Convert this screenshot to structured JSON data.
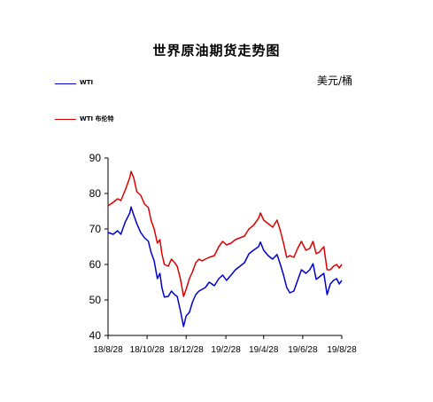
{
  "chart_data": {
    "type": "line",
    "title": "世界原油期货走势图",
    "unit_label": "美元/桶",
    "ylim": [
      40,
      90
    ],
    "y_ticks": [
      90,
      80,
      70,
      60,
      50,
      40
    ],
    "xlim": [
      "2018-08-28",
      "2019-08-28"
    ],
    "x_ticks": [
      {
        "date": "2018-08-28",
        "label": "18/8/28"
      },
      {
        "date": "2018-10-28",
        "label": "18/10/28"
      },
      {
        "date": "2018-12-28",
        "label": "18/12/28"
      },
      {
        "date": "2019-02-28",
        "label": "19/2/28"
      },
      {
        "date": "2019-04-28",
        "label": "19/4/28"
      },
      {
        "date": "2019-06-28",
        "label": "19/6/28"
      },
      {
        "date": "2019-08-28",
        "label": "19/8/28"
      }
    ],
    "grid": false,
    "legend": "top-left",
    "series": [
      {
        "name": "WTI",
        "color": "#0000cc",
        "points": [
          [
            "2018-08-28",
            69
          ],
          [
            "2018-09-05",
            68.5
          ],
          [
            "2018-09-12",
            69.5
          ],
          [
            "2018-09-17",
            68.5
          ],
          [
            "2018-09-24",
            72
          ],
          [
            "2018-10-01",
            74.5
          ],
          [
            "2018-10-03",
            76.2
          ],
          [
            "2018-10-07",
            74
          ],
          [
            "2018-10-12",
            71.5
          ],
          [
            "2018-10-18",
            69
          ],
          [
            "2018-10-24",
            67.5
          ],
          [
            "2018-10-30",
            66.5
          ],
          [
            "2018-11-03",
            63.5
          ],
          [
            "2018-11-08",
            61
          ],
          [
            "2018-11-13",
            56
          ],
          [
            "2018-11-17",
            57.5
          ],
          [
            "2018-11-20",
            53.5
          ],
          [
            "2018-11-24",
            50.8
          ],
          [
            "2018-11-30",
            51
          ],
          [
            "2018-12-05",
            52.5
          ],
          [
            "2018-12-10",
            51.5
          ],
          [
            "2018-12-14",
            51
          ],
          [
            "2018-12-19",
            47
          ],
          [
            "2018-12-24",
            42.5
          ],
          [
            "2018-12-28",
            45.5
          ],
          [
            "2019-01-02",
            46.5
          ],
          [
            "2019-01-07",
            49.5
          ],
          [
            "2019-01-12",
            51.5
          ],
          [
            "2019-01-17",
            52.5
          ],
          [
            "2019-01-22",
            53
          ],
          [
            "2019-01-27",
            53.5
          ],
          [
            "2019-02-02",
            55
          ],
          [
            "2019-02-10",
            54
          ],
          [
            "2019-02-17",
            56
          ],
          [
            "2019-02-23",
            57
          ],
          [
            "2019-03-01",
            55.5
          ],
          [
            "2019-03-08",
            57
          ],
          [
            "2019-03-15",
            58.5
          ],
          [
            "2019-03-22",
            59.5
          ],
          [
            "2019-03-29",
            60.5
          ],
          [
            "2019-04-05",
            63
          ],
          [
            "2019-04-12",
            64
          ],
          [
            "2019-04-20",
            65
          ],
          [
            "2019-04-23",
            66.3
          ],
          [
            "2019-04-28",
            64
          ],
          [
            "2019-05-05",
            62.5
          ],
          [
            "2019-05-12",
            61.5
          ],
          [
            "2019-05-19",
            62.8
          ],
          [
            "2019-05-24",
            60
          ],
          [
            "2019-05-29",
            57
          ],
          [
            "2019-06-03",
            53.5
          ],
          [
            "2019-06-08",
            52
          ],
          [
            "2019-06-14",
            52.5
          ],
          [
            "2019-06-20",
            55.5
          ],
          [
            "2019-06-26",
            58.5
          ],
          [
            "2019-07-03",
            57.5
          ],
          [
            "2019-07-09",
            58.5
          ],
          [
            "2019-07-14",
            60.2
          ],
          [
            "2019-07-19",
            55.8
          ],
          [
            "2019-07-24",
            56.5
          ],
          [
            "2019-07-31",
            57.5
          ],
          [
            "2019-08-05",
            51.5
          ],
          [
            "2019-08-10",
            54.5
          ],
          [
            "2019-08-15",
            55.5
          ],
          [
            "2019-08-20",
            56
          ],
          [
            "2019-08-24",
            54.5
          ],
          [
            "2019-08-28",
            55.5
          ]
        ]
      },
      {
        "name": "WTI 布伦特",
        "color": "#dd0000",
        "points": [
          [
            "2018-08-28",
            76.5
          ],
          [
            "2018-09-05",
            77.5
          ],
          [
            "2018-09-12",
            78.5
          ],
          [
            "2018-09-17",
            78
          ],
          [
            "2018-09-24",
            81
          ],
          [
            "2018-10-01",
            84.5
          ],
          [
            "2018-10-03",
            86.2
          ],
          [
            "2018-10-07",
            84.5
          ],
          [
            "2018-10-12",
            80.5
          ],
          [
            "2018-10-18",
            79.5
          ],
          [
            "2018-10-24",
            77
          ],
          [
            "2018-10-30",
            76
          ],
          [
            "2018-11-03",
            72.5
          ],
          [
            "2018-11-08",
            70
          ],
          [
            "2018-11-13",
            66
          ],
          [
            "2018-11-17",
            67
          ],
          [
            "2018-11-20",
            63
          ],
          [
            "2018-11-24",
            60
          ],
          [
            "2018-11-30",
            59.5
          ],
          [
            "2018-12-05",
            61.5
          ],
          [
            "2018-12-10",
            60.5
          ],
          [
            "2018-12-14",
            59.5
          ],
          [
            "2018-12-19",
            56
          ],
          [
            "2018-12-24",
            51
          ],
          [
            "2018-12-28",
            53
          ],
          [
            "2019-01-02",
            56
          ],
          [
            "2019-01-07",
            58
          ],
          [
            "2019-01-12",
            60.5
          ],
          [
            "2019-01-17",
            61.5
          ],
          [
            "2019-01-22",
            61
          ],
          [
            "2019-01-27",
            61.5
          ],
          [
            "2019-02-02",
            62
          ],
          [
            "2019-02-10",
            62.5
          ],
          [
            "2019-02-17",
            65
          ],
          [
            "2019-02-23",
            66.5
          ],
          [
            "2019-03-01",
            65.5
          ],
          [
            "2019-03-08",
            66
          ],
          [
            "2019-03-15",
            67
          ],
          [
            "2019-03-22",
            67.5
          ],
          [
            "2019-03-29",
            68
          ],
          [
            "2019-04-05",
            70
          ],
          [
            "2019-04-12",
            71
          ],
          [
            "2019-04-20",
            73
          ],
          [
            "2019-04-23",
            74.5
          ],
          [
            "2019-04-28",
            72.5
          ],
          [
            "2019-05-05",
            71.5
          ],
          [
            "2019-05-12",
            70.5
          ],
          [
            "2019-05-19",
            72.5
          ],
          [
            "2019-05-24",
            69.5
          ],
          [
            "2019-05-29",
            66
          ],
          [
            "2019-06-03",
            62
          ],
          [
            "2019-06-08",
            62.5
          ],
          [
            "2019-06-14",
            62
          ],
          [
            "2019-06-20",
            64.5
          ],
          [
            "2019-06-26",
            66.5
          ],
          [
            "2019-07-03",
            64
          ],
          [
            "2019-07-09",
            64.5
          ],
          [
            "2019-07-14",
            66.5
          ],
          [
            "2019-07-19",
            63
          ],
          [
            "2019-07-24",
            63.5
          ],
          [
            "2019-07-31",
            65
          ],
          [
            "2019-08-05",
            58.5
          ],
          [
            "2019-08-10",
            58.5
          ],
          [
            "2019-08-15",
            59.5
          ],
          [
            "2019-08-20",
            60
          ],
          [
            "2019-08-24",
            59
          ],
          [
            "2019-08-28",
            60
          ]
        ]
      }
    ]
  }
}
